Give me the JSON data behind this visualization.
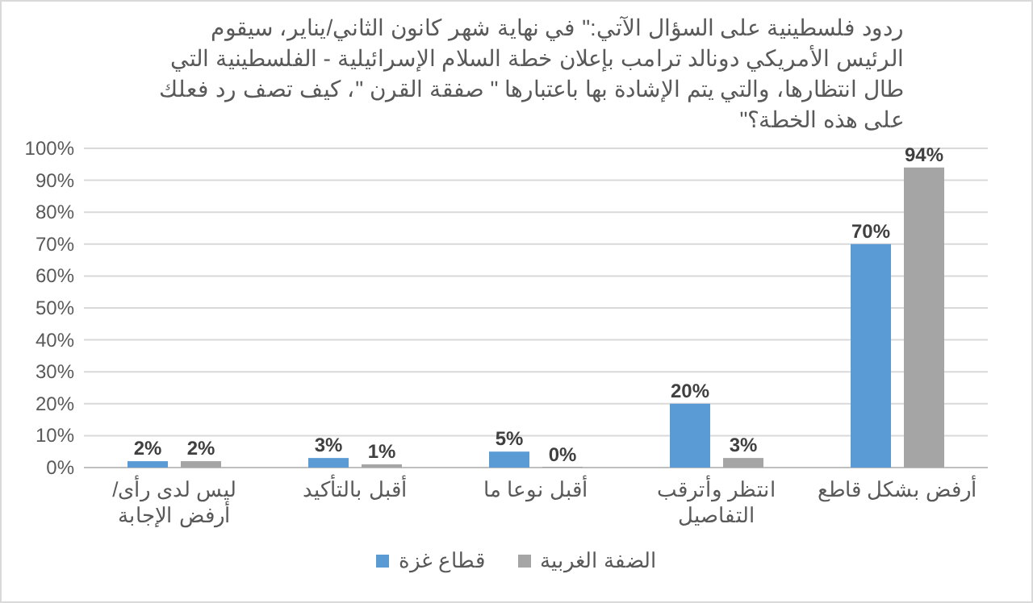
{
  "chart_data": {
    "type": "bar",
    "title": "ردود فلسطينية على السؤال الآتي:\" في نهاية شهر كانون الثاني/يناير، سيقوم الرئيس الأمريكي دونالد ترامب بإعلان خطة السلام الإسرائيلية - الفلسطينية التي طال انتظارها، والتي يتم الإشادة بها باعتبارها \" صفقة القرن \"، كيف تصف رد فعلك على هذه الخطة؟\"",
    "categories": [
      "ليس لدى رأى/ أرفض الإجابة",
      "أقبل بالتأكيد",
      "أقبل نوعا ما",
      "انتظر وأترقب التفاصيل",
      "أرفض بشكل قاطع"
    ],
    "series": [
      {
        "name": "قطاع غزة",
        "color": "#5b9bd5",
        "values": [
          2,
          3,
          5,
          20,
          70
        ],
        "value_labels": [
          "2%",
          "3%",
          "5%",
          "20%",
          "70%"
        ]
      },
      {
        "name": "الضفة الغربية",
        "color": "#a5a5a5",
        "values": [
          2,
          1,
          0,
          3,
          94
        ],
        "value_labels": [
          "2%",
          "1%",
          "0%",
          "3%",
          "94%"
        ]
      }
    ],
    "ylim": [
      0,
      100
    ],
    "yticks": [
      {
        "value": 0,
        "label": "0%"
      },
      {
        "value": 10,
        "label": "10%"
      },
      {
        "value": 20,
        "label": "20%"
      },
      {
        "value": 30,
        "label": "30%"
      },
      {
        "value": 40,
        "label": "40%"
      },
      {
        "value": 50,
        "label": "50%"
      },
      {
        "value": 60,
        "label": "60%"
      },
      {
        "value": 70,
        "label": "70%"
      },
      {
        "value": 80,
        "label": "80%"
      },
      {
        "value": 90,
        "label": "90%"
      },
      {
        "value": 100,
        "label": "100%"
      }
    ],
    "grid": "y",
    "legend": "bottom"
  }
}
